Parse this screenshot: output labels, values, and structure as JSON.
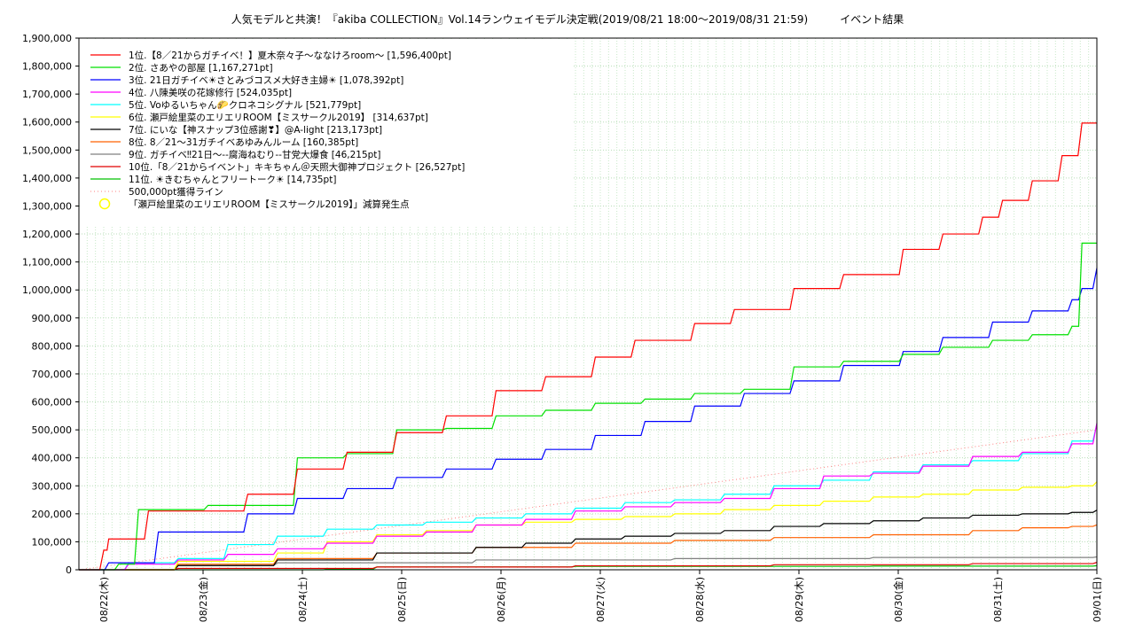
{
  "chart_data": {
    "type": "line",
    "title": "人気モデルと共演！『akiba COLLECTION』Vol.14ランウェイモデル決定戦(2019/08/21 18:00〜2019/08/31 21:59)　　　イベント結果",
    "xlabel": "",
    "ylabel": "",
    "ylim": [
      0,
      1900000
    ],
    "xlim": [
      "2019-08-21 18:00",
      "2019-09-01 00:00"
    ],
    "y_ticks": [
      "0",
      "100,000",
      "200,000",
      "300,000",
      "400,000",
      "500,000",
      "600,000",
      "700,000",
      "800,000",
      "900,000",
      "1,000,000",
      "1,100,000",
      "1,200,000",
      "1,300,000",
      "1,400,000",
      "1,500,000",
      "1,600,000",
      "1,700,000",
      "1,800,000",
      "1,900,000"
    ],
    "x_ticks": [
      "08/22(木)",
      "08/23(金)",
      "08/24(土)",
      "08/25(日)",
      "08/26(月)",
      "08/27(火)",
      "08/28(水)",
      "08/29(木)",
      "08/30(金)",
      "08/31(土)",
      "09/01(日)"
    ],
    "grid": true,
    "legend_position": "top-left",
    "series": [
      {
        "name": "1位.【8／21からガチイベ！】夏木奈々子〜ななけろroom〜 [1,596,400pt]",
        "color": "#ff0000",
        "x": [
          0,
          0.25,
          0.3,
          0.5,
          0.7,
          1.2,
          1.7,
          2.2,
          2.7,
          3.2,
          3.7,
          4.2,
          4.7,
          5.2,
          5.6,
          6.2,
          6.6,
          7.2,
          7.7,
          8.3,
          8.7,
          9.1,
          9.3,
          9.6,
          9.9,
          10.1,
          10.25
        ],
        "y": [
          0,
          70000,
          110000,
          110000,
          210000,
          210000,
          270000,
          360000,
          420000,
          490000,
          550000,
          640000,
          690000,
          760000,
          820000,
          880000,
          930000,
          1005000,
          1055000,
          1145000,
          1200000,
          1260000,
          1320000,
          1390000,
          1480000,
          1596400,
          1596400
        ]
      },
      {
        "name": "2位. さあやの部屋 [1,167,271pt]",
        "color": "#00e000",
        "x": [
          0,
          0.4,
          0.6,
          1.3,
          1.7,
          2.2,
          2.7,
          3.2,
          3.7,
          4.2,
          4.7,
          5.2,
          5.7,
          6.2,
          6.7,
          7.2,
          7.7,
          8.3,
          8.7,
          9.2,
          9.6,
          10.0,
          10.1,
          10.25
        ],
        "y": [
          0,
          20000,
          215000,
          230000,
          230000,
          400000,
          415000,
          500000,
          505000,
          550000,
          570000,
          595000,
          610000,
          630000,
          645000,
          725000,
          745000,
          770000,
          795000,
          820000,
          840000,
          870000,
          1167271,
          1167271
        ]
      },
      {
        "name": "3位. 21日ガチイベ☀さとみづコスメ大好き主婦☀ [1,078,392pt]",
        "color": "#0000ff",
        "x": [
          0,
          0.3,
          0.8,
          1.2,
          1.7,
          2.2,
          2.7,
          3.2,
          3.7,
          4.2,
          4.7,
          5.2,
          5.7,
          6.2,
          6.7,
          7.2,
          7.7,
          8.3,
          8.7,
          9.2,
          9.6,
          10.0,
          10.1,
          10.25
        ],
        "y": [
          0,
          25000,
          135000,
          135000,
          200000,
          255000,
          290000,
          330000,
          360000,
          395000,
          430000,
          480000,
          530000,
          585000,
          630000,
          675000,
          730000,
          780000,
          830000,
          885000,
          925000,
          965000,
          1005000,
          1078392
        ]
      },
      {
        "name": "4位. 八陳美咲の花嫁修行 [524,035pt]",
        "color": "#ff00ff",
        "x": [
          0,
          0.5,
          1.0,
          1.5,
          2.0,
          2.5,
          3.0,
          3.5,
          4.0,
          4.5,
          5.0,
          5.5,
          6.0,
          6.5,
          7.0,
          7.5,
          8.0,
          8.5,
          9.0,
          9.5,
          10.0,
          10.25
        ],
        "y": [
          0,
          20000,
          35000,
          55000,
          75000,
          95000,
          120000,
          135000,
          160000,
          180000,
          210000,
          225000,
          240000,
          255000,
          290000,
          335000,
          345000,
          370000,
          405000,
          420000,
          450000,
          524035
        ]
      },
      {
        "name": "5位. Voゆるいちゃん🌮クロネコシグナル [521,779pt]",
        "color": "#00ffff",
        "x": [
          0,
          0.5,
          1.0,
          1.5,
          2.0,
          2.5,
          3.0,
          3.5,
          4.0,
          4.5,
          5.0,
          5.5,
          6.0,
          6.5,
          7.0,
          7.5,
          8.0,
          8.5,
          9.0,
          9.5,
          10.0,
          10.25
        ],
        "y": [
          0,
          25000,
          40000,
          90000,
          120000,
          145000,
          160000,
          170000,
          185000,
          200000,
          220000,
          240000,
          250000,
          270000,
          300000,
          320000,
          350000,
          375000,
          390000,
          415000,
          460000,
          521779
        ]
      },
      {
        "name": "6位. 瀬戸絵里菜のエリエリROOM【ミスサークル2019】 [314,637pt]",
        "color": "#ffff00",
        "x": [
          0,
          1.0,
          2.0,
          2.5,
          3.0,
          3.5,
          4.0,
          4.5,
          5.0,
          5.5,
          6.0,
          6.5,
          7.0,
          7.5,
          8.0,
          8.5,
          9.0,
          9.5,
          10.0,
          10.25
        ],
        "y": [
          0,
          30000,
          60000,
          100000,
          125000,
          140000,
          160000,
          170000,
          180000,
          190000,
          200000,
          215000,
          230000,
          245000,
          260000,
          270000,
          285000,
          295000,
          300000,
          314637
        ]
      },
      {
        "name": "7位. にいな【神スナップ3位感謝❣】@A-light [213,173pt]",
        "color": "#000000",
        "x": [
          0,
          1.0,
          2.0,
          3.0,
          4.0,
          4.5,
          5.0,
          5.5,
          6.0,
          6.5,
          7.0,
          7.5,
          8.0,
          8.5,
          9.0,
          9.5,
          10.0,
          10.25
        ],
        "y": [
          0,
          15000,
          35000,
          60000,
          80000,
          95000,
          110000,
          120000,
          130000,
          140000,
          155000,
          165000,
          175000,
          185000,
          195000,
          200000,
          205000,
          213173
        ]
      },
      {
        "name": "8位. 8／21〜31ガチイベあゆみんルーム [160,385pt]",
        "color": "#ff6000",
        "x": [
          0,
          1.0,
          2.0,
          3.0,
          4.0,
          5.0,
          6.0,
          7.0,
          8.0,
          9.0,
          9.5,
          10.0,
          10.25
        ],
        "y": [
          0,
          20000,
          40000,
          60000,
          80000,
          95000,
          105000,
          115000,
          125000,
          140000,
          150000,
          155000,
          160385
        ]
      },
      {
        "name": "9位. ガチイベ‼21日〜--腐海ねむり--甘党大爆食 [46,215pt]",
        "color": "#808080",
        "x": [
          0,
          1.0,
          2.0,
          4.0,
          6.0,
          8.0,
          10.25
        ],
        "y": [
          0,
          15000,
          25000,
          35000,
          40000,
          44000,
          46215
        ]
      },
      {
        "name": "10位.「8／21からイベント」キキちゃん＠天照大御神プロジェクト [26,527pt]",
        "color": "#e00000",
        "x": [
          0,
          1.0,
          3.0,
          5.0,
          7.0,
          9.0,
          10.25
        ],
        "y": [
          0,
          5000,
          10000,
          14000,
          18000,
          22000,
          26527
        ]
      },
      {
        "name": "11位. ☀きむちゃんとフリートーク☀ [14,735pt]",
        "color": "#00c000",
        "x": [
          0,
          2.5,
          3.0,
          5.0,
          8.0,
          10.25
        ],
        "y": [
          0,
          2000,
          10000,
          12000,
          13000,
          14735
        ]
      }
    ],
    "reference_line": {
      "name": "500,000pt獲得ライン",
      "color": "#ff8080",
      "x": [
        0,
        10.25
      ],
      "y": [
        0,
        500000
      ]
    },
    "marker_legend": {
      "name": "「瀬戸絵里菜のエリエリROOM【ミスサークル2019】」減算発生点",
      "color": "#ffff00"
    }
  }
}
